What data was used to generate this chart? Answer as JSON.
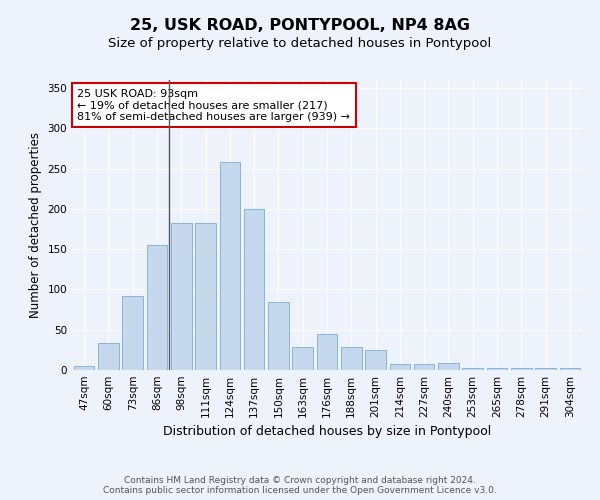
{
  "title1": "25, USK ROAD, PONTYPOOL, NP4 8AG",
  "title2": "Size of property relative to detached houses in Pontypool",
  "xlabel": "Distribution of detached houses by size in Pontypool",
  "ylabel": "Number of detached properties",
  "categories": [
    "47sqm",
    "60sqm",
    "73sqm",
    "86sqm",
    "98sqm",
    "111sqm",
    "124sqm",
    "137sqm",
    "150sqm",
    "163sqm",
    "176sqm",
    "188sqm",
    "201sqm",
    "214sqm",
    "227sqm",
    "240sqm",
    "253sqm",
    "265sqm",
    "278sqm",
    "291sqm",
    "304sqm"
  ],
  "values": [
    5,
    33,
    92,
    155,
    183,
    183,
    258,
    200,
    85,
    28,
    45,
    28,
    25,
    7,
    8,
    9,
    3,
    3,
    2,
    3,
    2
  ],
  "bar_color": "#c5d8ed",
  "bar_edge_color": "#7aadd4",
  "annotation_line1": "25 USK ROAD: 93sqm",
  "annotation_line2": "← 19% of detached houses are smaller (217)",
  "annotation_line3": "81% of semi-detached houses are larger (939) →",
  "annotation_box_color": "#ffffff",
  "annotation_box_edge": "#cc0000",
  "vline_color": "#555555",
  "background_color": "#eef2fb",
  "grid_color": "#ffffff",
  "ylim": [
    0,
    360
  ],
  "yticks": [
    0,
    50,
    100,
    150,
    200,
    250,
    300,
    350
  ],
  "footer1": "Contains HM Land Registry data © Crown copyright and database right 2024.",
  "footer2": "Contains public sector information licensed under the Open Government Licence v3.0.",
  "title1_fontsize": 11.5,
  "title2_fontsize": 9.5,
  "xlabel_fontsize": 9,
  "ylabel_fontsize": 8.5,
  "tick_fontsize": 7.5,
  "annotation_fontsize": 8,
  "footer_fontsize": 6.5
}
